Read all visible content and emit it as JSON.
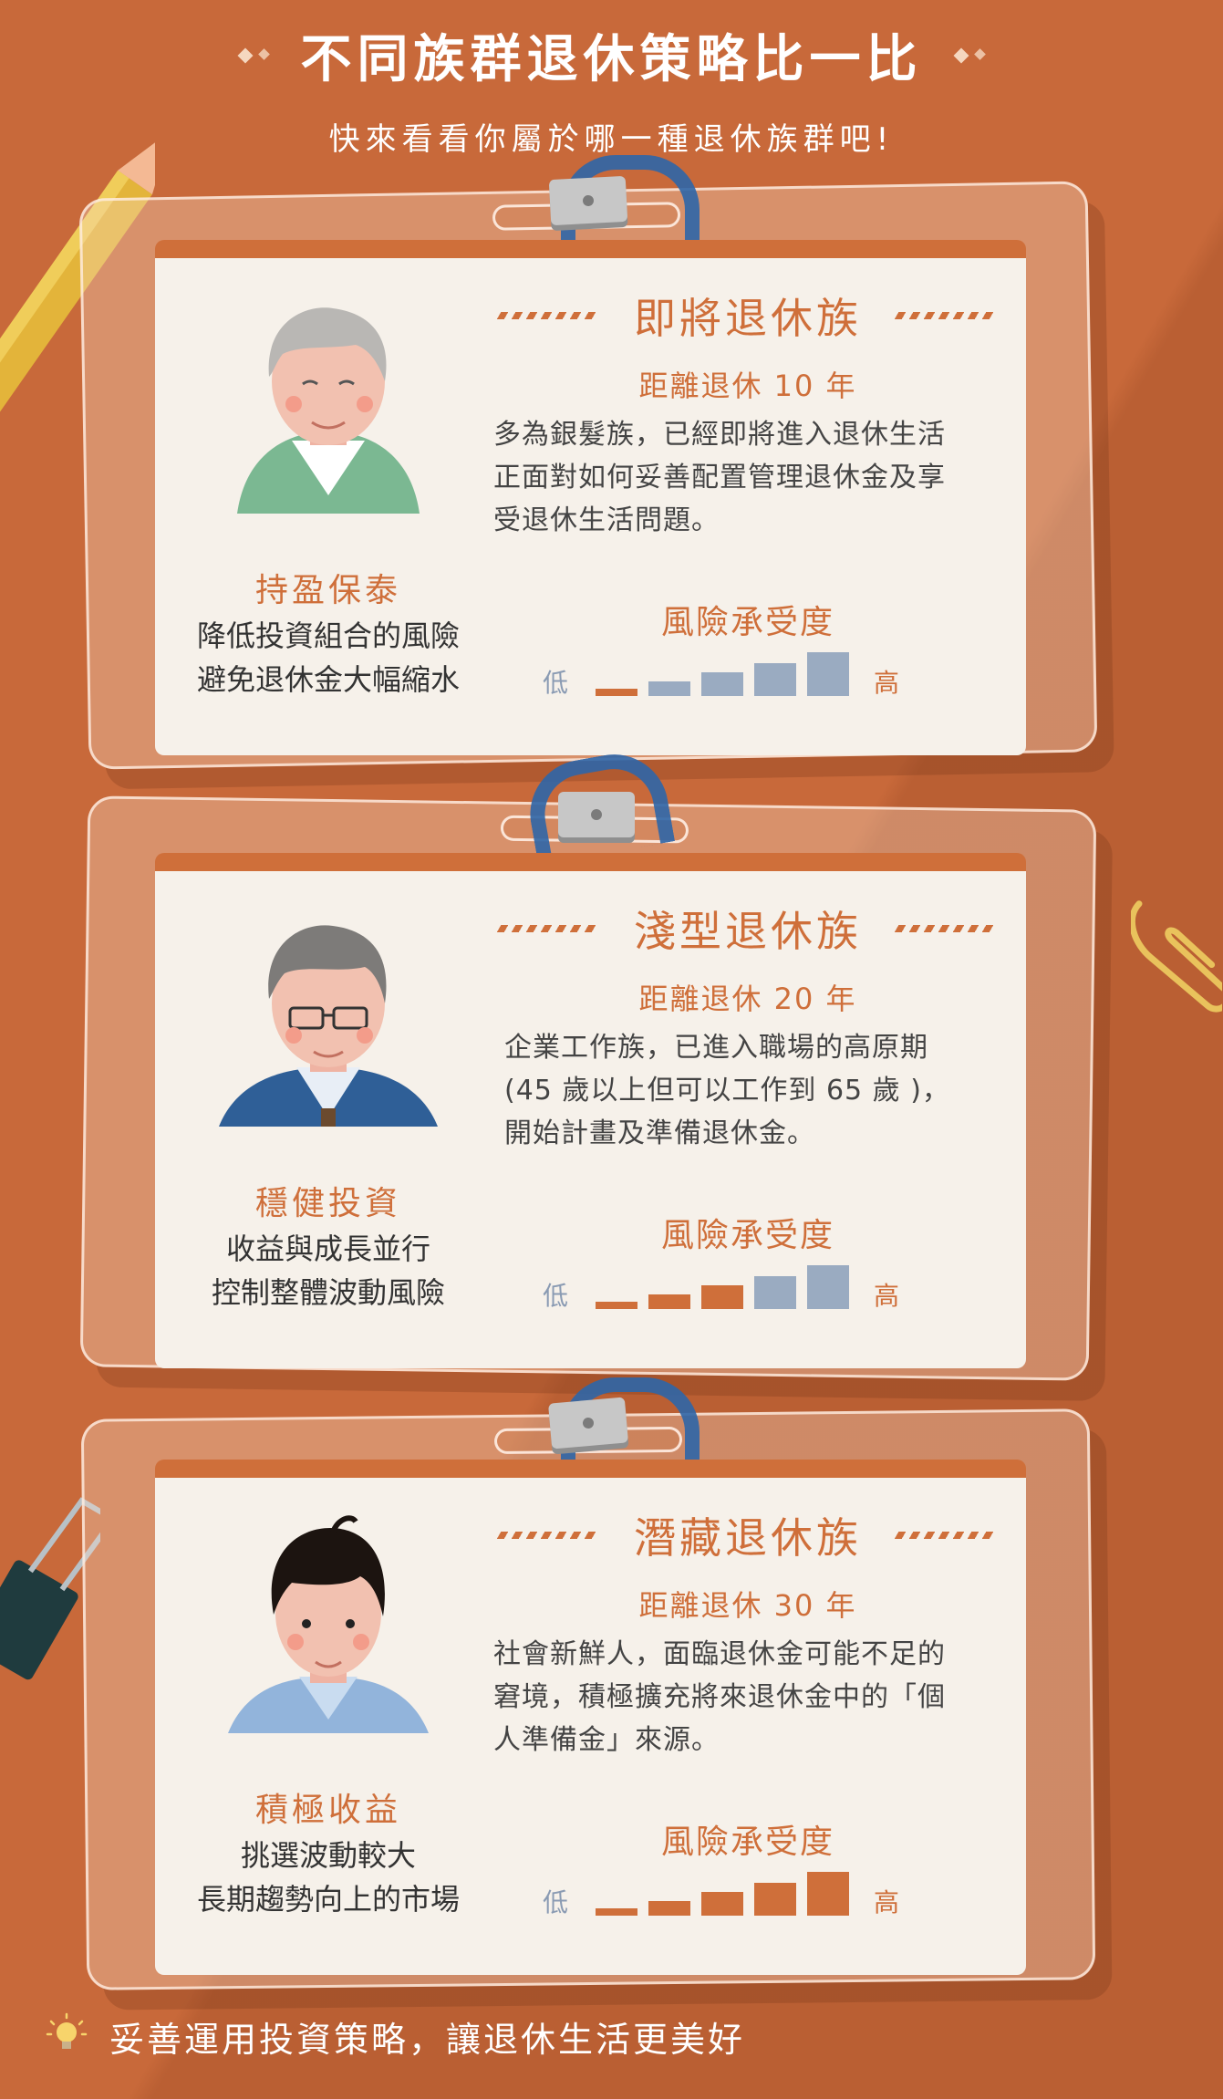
{
  "header": {
    "title": "不同族群退休策略比一比",
    "subtitle": "快來看看你屬於哪一種退休族群吧!"
  },
  "labels": {
    "risk_title": "風險承受度",
    "risk_low": "低",
    "risk_high": "高"
  },
  "cards": [
    {
      "group_name": "即將退休族",
      "distance": "距離退休 10 年",
      "description_lines": [
        "多為銀髮族，已經即將進入退休生活",
        "正面對如何妥善配置管理退休金及享",
        "受退休生活問題。"
      ],
      "strategy_title": "持盈保泰",
      "strategy_lines": [
        "降低投資組合的風險",
        "避免退休金大幅縮水"
      ],
      "risk_level": 1,
      "risk_max": 5,
      "avatar_icon": "elderly-man-green-vest-icon"
    },
    {
      "group_name": "淺型退休族",
      "distance": "距離退休 20 年",
      "description_lines": [
        "企業工作族，已進入職場的高原期",
        "(45 歲以上但可以工作到 65 歲 )，",
        "開始計畫及準備退休金。"
      ],
      "strategy_title": "穩健投資",
      "strategy_lines": [
        "收益與成長並行",
        "控制整體波動風險"
      ],
      "risk_level": 3,
      "risk_max": 5,
      "avatar_icon": "middle-aged-man-glasses-icon"
    },
    {
      "group_name": "潛藏退休族",
      "distance": "距離退休 30 年",
      "description_lines": [
        "社會新鮮人，面臨退休金可能不足的",
        "窘境，積極擴充將來退休金中的「個",
        "人準備金」來源。"
      ],
      "strategy_title": "積極收益",
      "strategy_lines": [
        "挑選波動較大",
        "長期趨勢向上的市場"
      ],
      "risk_level": 5,
      "risk_max": 5,
      "avatar_icon": "young-man-icon"
    }
  ],
  "footer": {
    "text": "妥善運用投資策略，讓退休生活更美好",
    "icon": "lightbulb-icon"
  },
  "colors": {
    "background": "#c8693a",
    "accent": "#cf6f3a",
    "card": "#f6f1ea",
    "bar_inactive": "#9aabc1"
  }
}
